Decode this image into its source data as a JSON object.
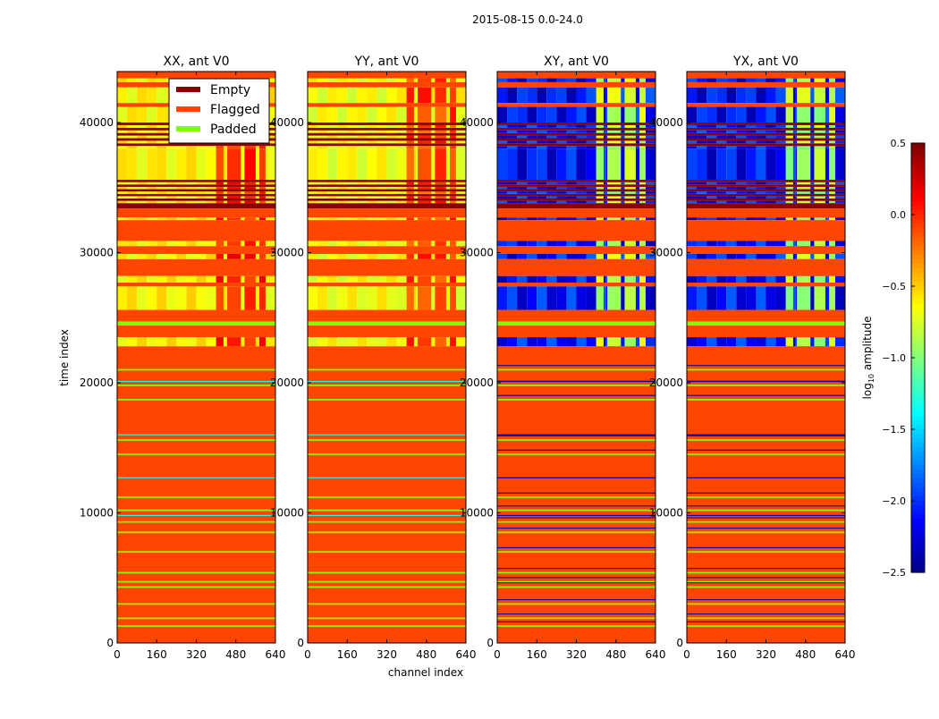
{
  "chart_data": {
    "type": "heatmap",
    "title": "2015-08-15 0.0-24.0",
    "xlabel": "channel index",
    "ylabel": "time index",
    "xlim": [
      0,
      640
    ],
    "ylim": [
      0,
      43920
    ],
    "xticks": [
      "0",
      "160",
      "320",
      "480",
      "640"
    ],
    "xtick_values": [
      0,
      160,
      320,
      480,
      640
    ],
    "yticks": [
      "0",
      "10000",
      "20000",
      "30000",
      "40000"
    ],
    "ytick_values": [
      0,
      10000,
      20000,
      30000,
      40000
    ],
    "colorbar": {
      "label": "log10 amplitude",
      "label_main": "log",
      "label_sub": "10",
      "label_rest": " amplitude",
      "range": [
        -2.5,
        0.5
      ],
      "ticks": [
        "0.5",
        "0.0",
        "−0.5",
        "−1.0",
        "−1.5",
        "−2.0",
        "−2.5"
      ],
      "tick_values": [
        0.5,
        0.0,
        -0.5,
        -1.0,
        -1.5,
        -2.0,
        -2.5
      ],
      "colormap": "jet"
    },
    "legend": {
      "placement": "top-right of first panel",
      "entries": [
        {
          "label": "Empty",
          "color": "#8b0000"
        },
        {
          "label": "Flagged",
          "color": "#ff4500"
        },
        {
          "label": "Padded",
          "color": "#7fff00"
        }
      ]
    },
    "category_colors": {
      "empty": "#8b0000",
      "flagged": "#ff4500",
      "padded": "#7fff00"
    },
    "panels": [
      {
        "title": "XX, ant V0",
        "base": -0.6,
        "hot": 0.05
      },
      {
        "title": "YY, ant V0",
        "base": -0.65,
        "hot": -0.05
      },
      {
        "title": "XY, ant V0",
        "base": -2.1,
        "hot": -0.8
      },
      {
        "title": "YX, ant V0",
        "base": -2.1,
        "hot": -0.85
      }
    ],
    "hot_channels": [
      [
        400,
        430
      ],
      [
        445,
        500
      ],
      [
        515,
        560
      ],
      [
        575,
        600
      ]
    ],
    "bands": [
      [
        43400,
        43920,
        "flagged"
      ],
      [
        43100,
        43400,
        "data"
      ],
      [
        42700,
        43100,
        "flagged"
      ],
      [
        41500,
        42700,
        "data"
      ],
      [
        41200,
        41500,
        "flagged"
      ],
      [
        40000,
        41200,
        "data"
      ],
      [
        38000,
        40000,
        "striped"
      ],
      [
        35600,
        38000,
        "data"
      ],
      [
        33800,
        35600,
        "striped"
      ],
      [
        33400,
        33800,
        "empty"
      ],
      [
        32700,
        33400,
        "flagged"
      ],
      [
        32500,
        32700,
        "data"
      ],
      [
        30900,
        32500,
        "flagged"
      ],
      [
        30500,
        30900,
        "data"
      ],
      [
        29900,
        30500,
        "flagged"
      ],
      [
        29500,
        29900,
        "data"
      ],
      [
        28200,
        29500,
        "flagged"
      ],
      [
        27700,
        28200,
        "data"
      ],
      [
        27400,
        27700,
        "flagged"
      ],
      [
        25600,
        27400,
        "data"
      ],
      [
        24700,
        25600,
        "flagged"
      ],
      [
        24400,
        24700,
        "padded"
      ],
      [
        23500,
        24400,
        "flagged"
      ],
      [
        22800,
        23500,
        "data"
      ],
      [
        0,
        22800,
        "flagged"
      ]
    ],
    "padded_lines": [
      21000,
      19800,
      18700,
      15600,
      14500,
      11200,
      10200,
      9300,
      8500,
      7000,
      5400,
      4700,
      4300,
      3000,
      1900,
      1300
    ],
    "data_lines": [
      12700,
      20100,
      16000,
      9800
    ]
  }
}
